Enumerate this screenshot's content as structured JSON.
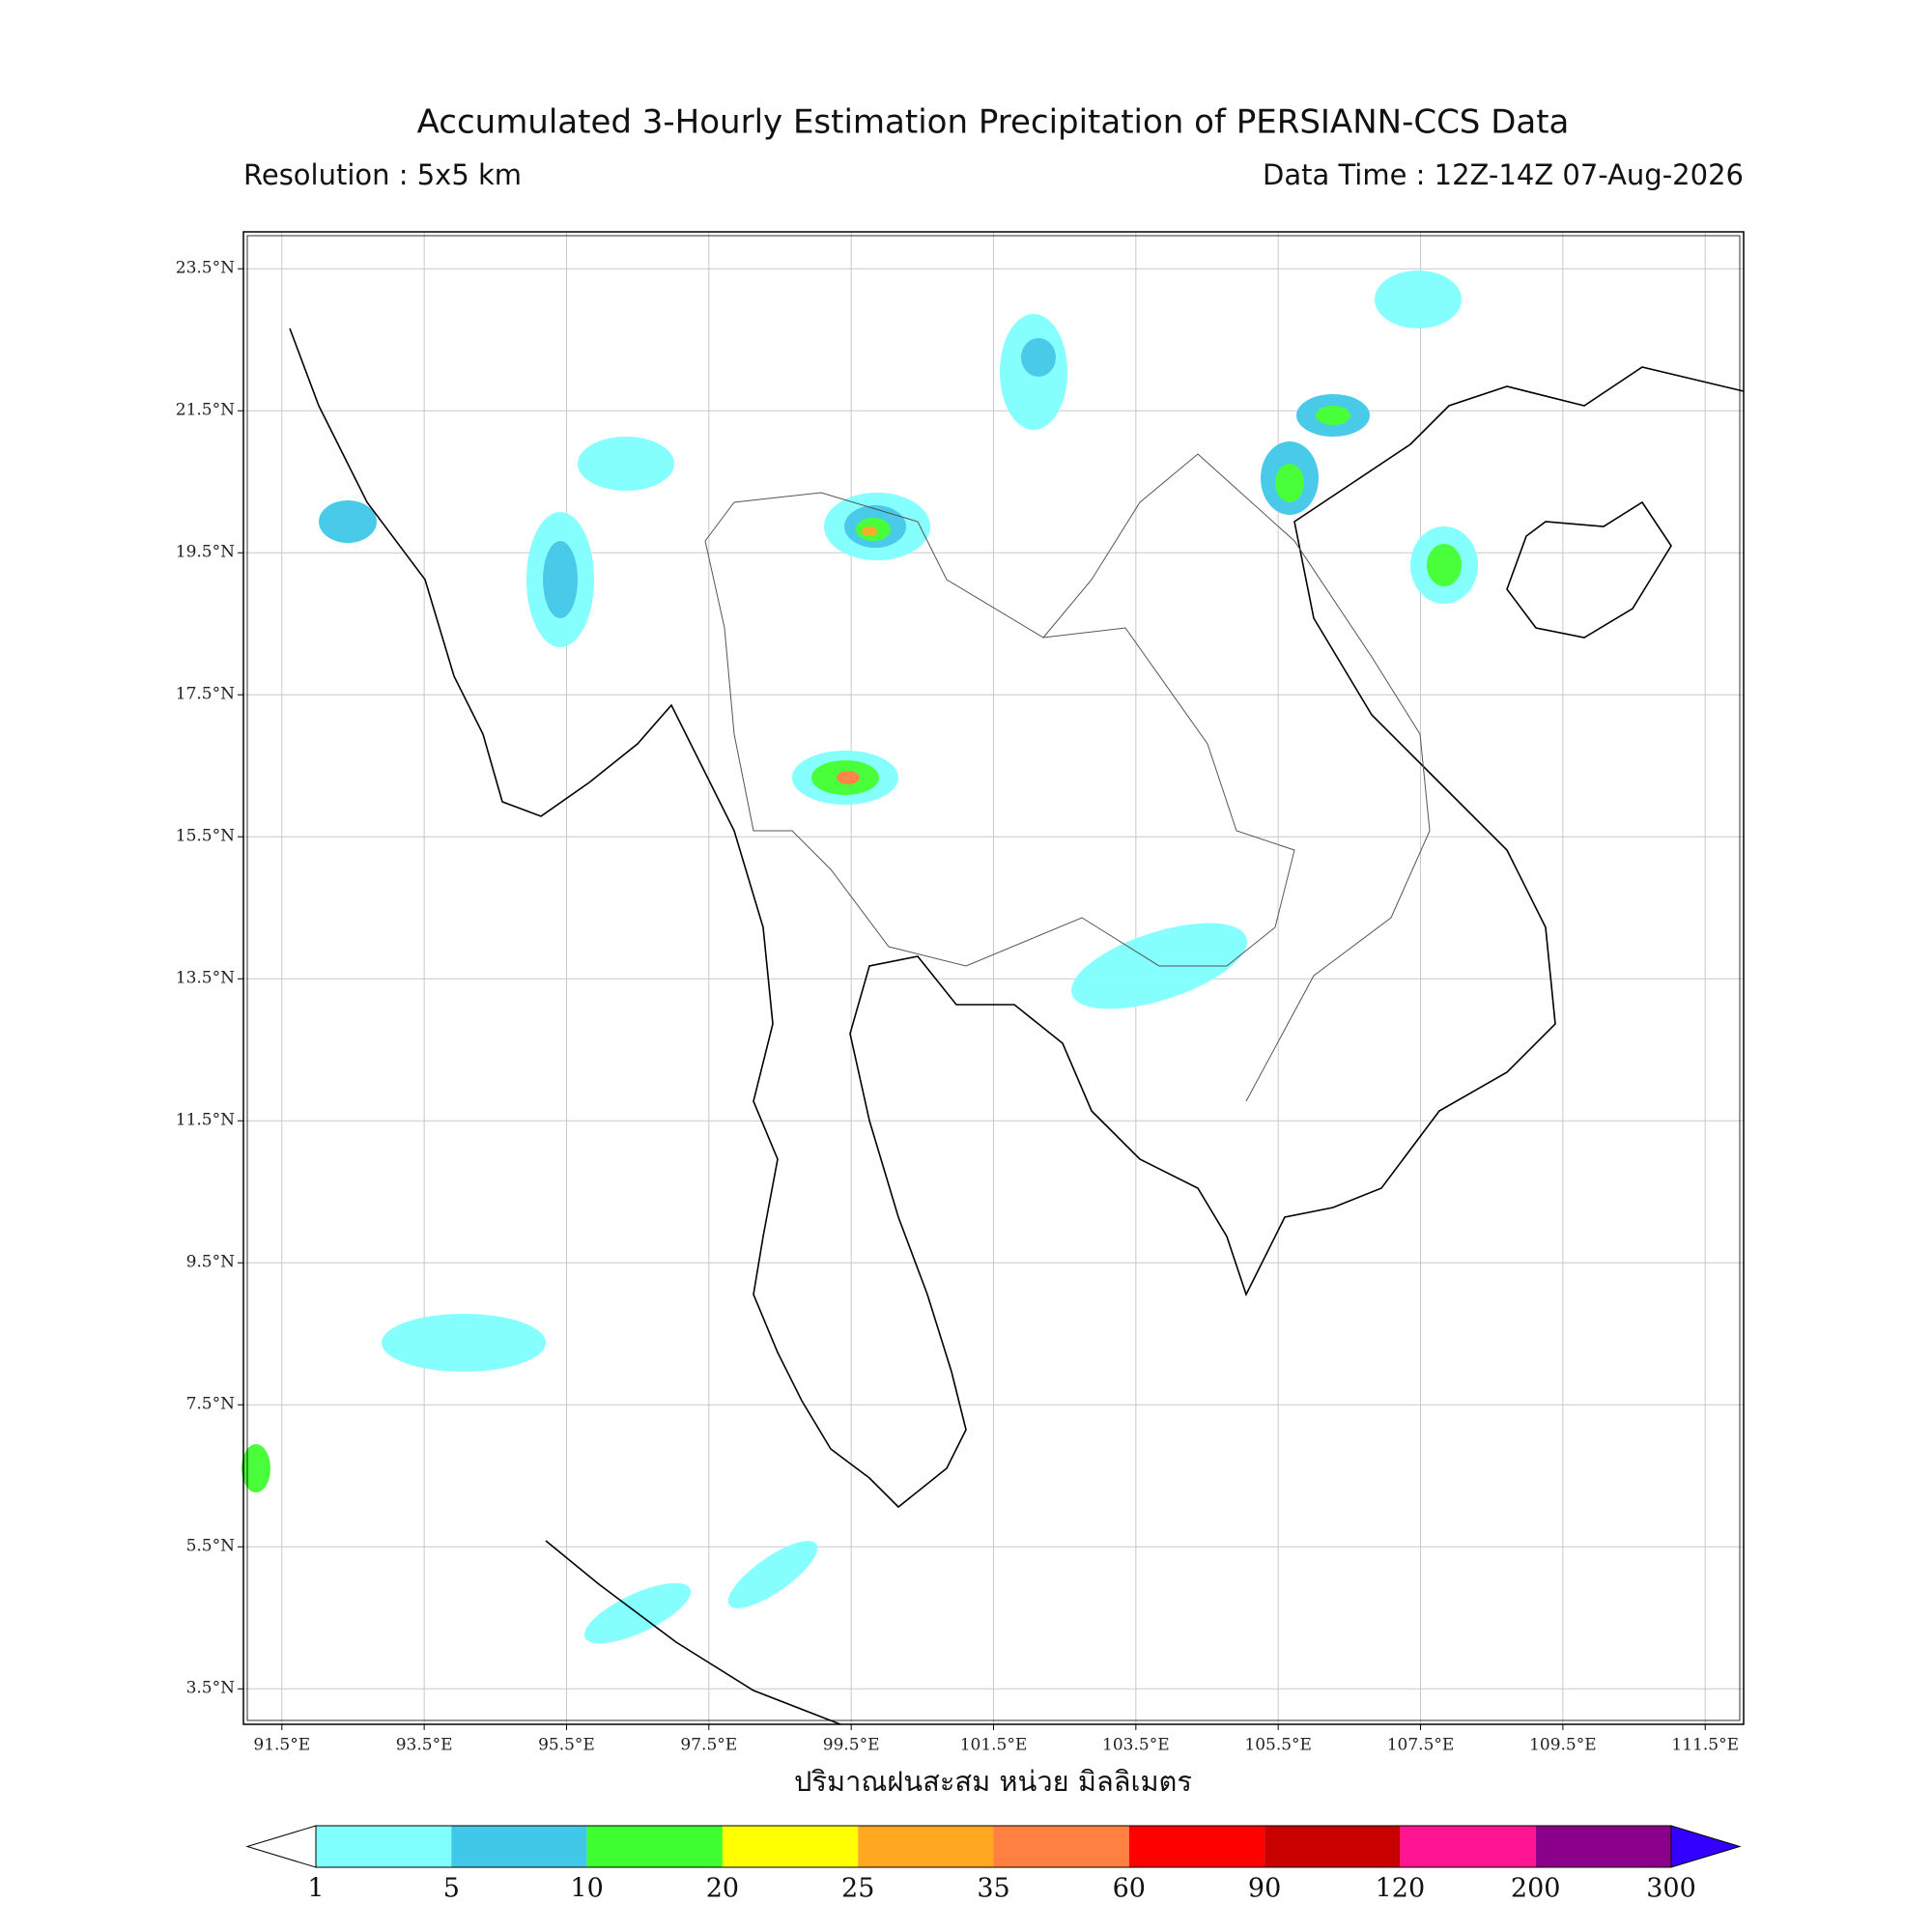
{
  "header": {
    "title": "Accumulated 3-Hourly Estimation Precipitation of PERSIANN-CCS Data",
    "resolution": "Resolution : 5x5 km",
    "data_time": "Data Time : 12Z-14Z 07-Aug-2026"
  },
  "map": {
    "lon_lim": [
      90.96,
      112.04
    ],
    "lat_lim": [
      3.0,
      24.02
    ],
    "lon_ticks": [
      {
        "value": 91.5,
        "label": "91.5°E"
      },
      {
        "value": 93.5,
        "label": "93.5°E"
      },
      {
        "value": 95.5,
        "label": "95.5°E"
      },
      {
        "value": 97.5,
        "label": "97.5°E"
      },
      {
        "value": 99.5,
        "label": "99.5°E"
      },
      {
        "value": 101.5,
        "label": "101.5°E"
      },
      {
        "value": 103.5,
        "label": "103.5°E"
      },
      {
        "value": 105.5,
        "label": "105.5°E"
      },
      {
        "value": 107.5,
        "label": "107.5°E"
      },
      {
        "value": 109.5,
        "label": "109.5°E"
      },
      {
        "value": 111.5,
        "label": "111.5°E"
      }
    ],
    "lat_ticks": [
      {
        "value": 23.5,
        "label": "23.5°N"
      },
      {
        "value": 21.5,
        "label": "21.5°N"
      },
      {
        "value": 19.5,
        "label": "19.5°N"
      },
      {
        "value": 17.5,
        "label": "17.5°N"
      },
      {
        "value": 15.5,
        "label": "15.5°N"
      },
      {
        "value": 13.5,
        "label": "13.5°N"
      },
      {
        "value": 11.5,
        "label": "11.5°N"
      },
      {
        "value": 9.5,
        "label": "9.5°N"
      },
      {
        "value": 7.5,
        "label": "7.5°N"
      },
      {
        "value": 5.5,
        "label": "5.5°N"
      },
      {
        "value": 3.5,
        "label": "3.5°N"
      }
    ]
  },
  "legend": {
    "title": "ปริมาณฝนสะสม หน่วย มิลลิเมตร",
    "levels": [
      1,
      5,
      10,
      20,
      25,
      35,
      60,
      90,
      120,
      200,
      300
    ],
    "colors": [
      "#80ffff",
      "#40c8e8",
      "#40ff30",
      "#ffff00",
      "#ffa820",
      "#ff8040",
      "#ff0000",
      "#c80000",
      "#ff1493",
      "#8b008b"
    ],
    "under_color": "#ffffff",
    "over_color": "#3300ff"
  }
}
